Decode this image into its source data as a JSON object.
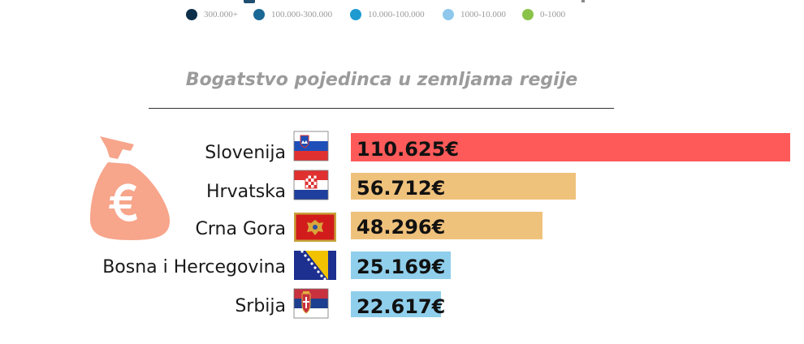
{
  "legend": {
    "items": [
      {
        "label": "300.000+",
        "color": "#0d2f4a"
      },
      {
        "label": "100.000-300.000",
        "color": "#1a6895"
      },
      {
        "label": "10.000-100.000",
        "color": "#1d9bd1"
      },
      {
        "label": "1000-10.000",
        "color": "#8fc8ec"
      },
      {
        "label": "0-1000",
        "color": "#8bc34a"
      }
    ]
  },
  "icons": {
    "bag": "money-bag-euro-icon",
    "flags": [
      "slovenia-flag-icon",
      "croatia-flag-icon",
      "montenegro-flag-icon",
      "bosnia-flag-icon",
      "serbia-flag-icon"
    ]
  },
  "colors": {
    "top": "#ff5a5a",
    "mid": "#efc27c",
    "low": "#8fcfec",
    "bag": "#f7a58b"
  },
  "chart_data": {
    "type": "bar",
    "orientation": "horizontal",
    "title": "Bogatstvo pojedinca u zemljama regije",
    "categories": [
      "Slovenija",
      "Hrvatska",
      "Crna Gora",
      "Bosna i Hercegovina",
      "Srbija"
    ],
    "values": [
      110625,
      56712,
      48296,
      25169,
      22617
    ],
    "value_labels": [
      "110.625€",
      "56.712€",
      "48.296€",
      "25.169€",
      "22.617€"
    ],
    "bar_colors": [
      "#ff5a5a",
      "#efc27c",
      "#efc27c",
      "#8fcfec",
      "#8fcfec"
    ],
    "xlim": [
      0,
      110625
    ],
    "grid": false,
    "legend": "none"
  }
}
